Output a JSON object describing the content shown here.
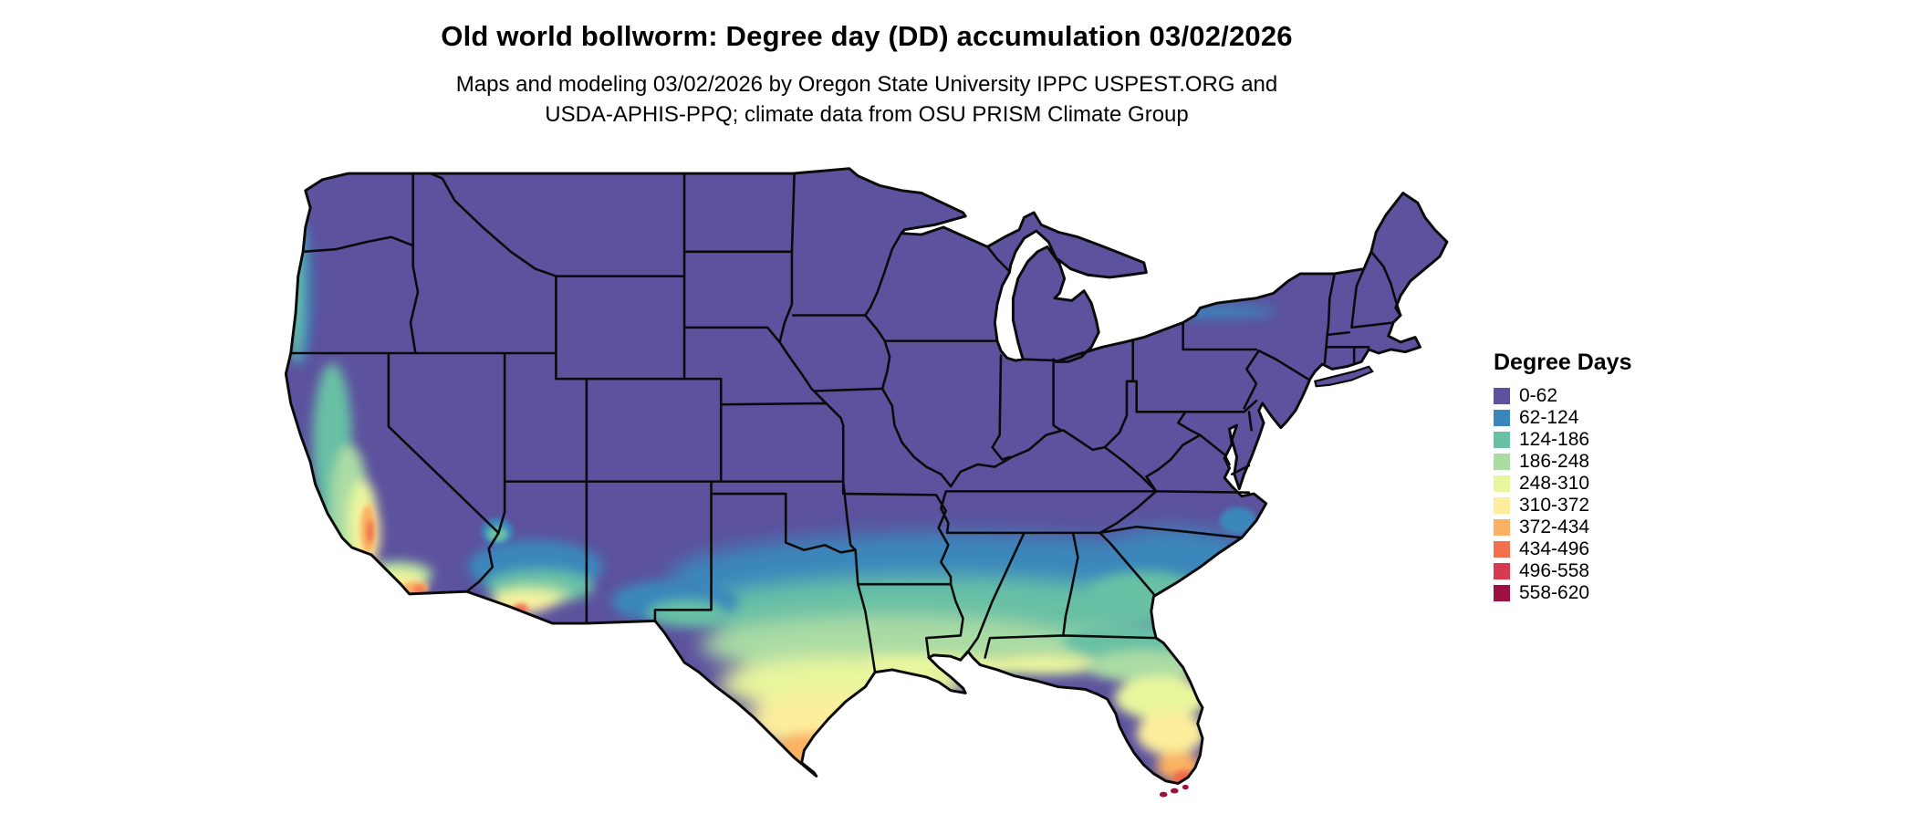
{
  "header": {
    "title": "Old world bollworm: Degree day (DD) accumulation 03/02/2026",
    "subtitle_line1": "Maps and modeling 03/02/2026 by Oregon State University IPPC USPEST.ORG and",
    "subtitle_line2": "USDA-APHIS-PPQ; climate data from OSU PRISM Climate Group"
  },
  "map": {
    "description": "Contiguous United States raster map of accumulated degree days with state boundaries",
    "border_color": "#0a0a0a"
  },
  "legend": {
    "title": "Degree Days",
    "items": [
      {
        "label": "0-62",
        "color": "#5c529e"
      },
      {
        "label": "62-124",
        "color": "#3a87bb"
      },
      {
        "label": "124-186",
        "color": "#68c0a5"
      },
      {
        "label": "186-248",
        "color": "#aadca4"
      },
      {
        "label": "248-310",
        "color": "#e9f69d"
      },
      {
        "label": "310-372",
        "color": "#fdee9d"
      },
      {
        "label": "372-434",
        "color": "#fcb162"
      },
      {
        "label": "434-496",
        "color": "#f2704b"
      },
      {
        "label": "496-558",
        "color": "#d73a4e"
      },
      {
        "label": "558-620",
        "color": "#9d1043"
      }
    ]
  }
}
